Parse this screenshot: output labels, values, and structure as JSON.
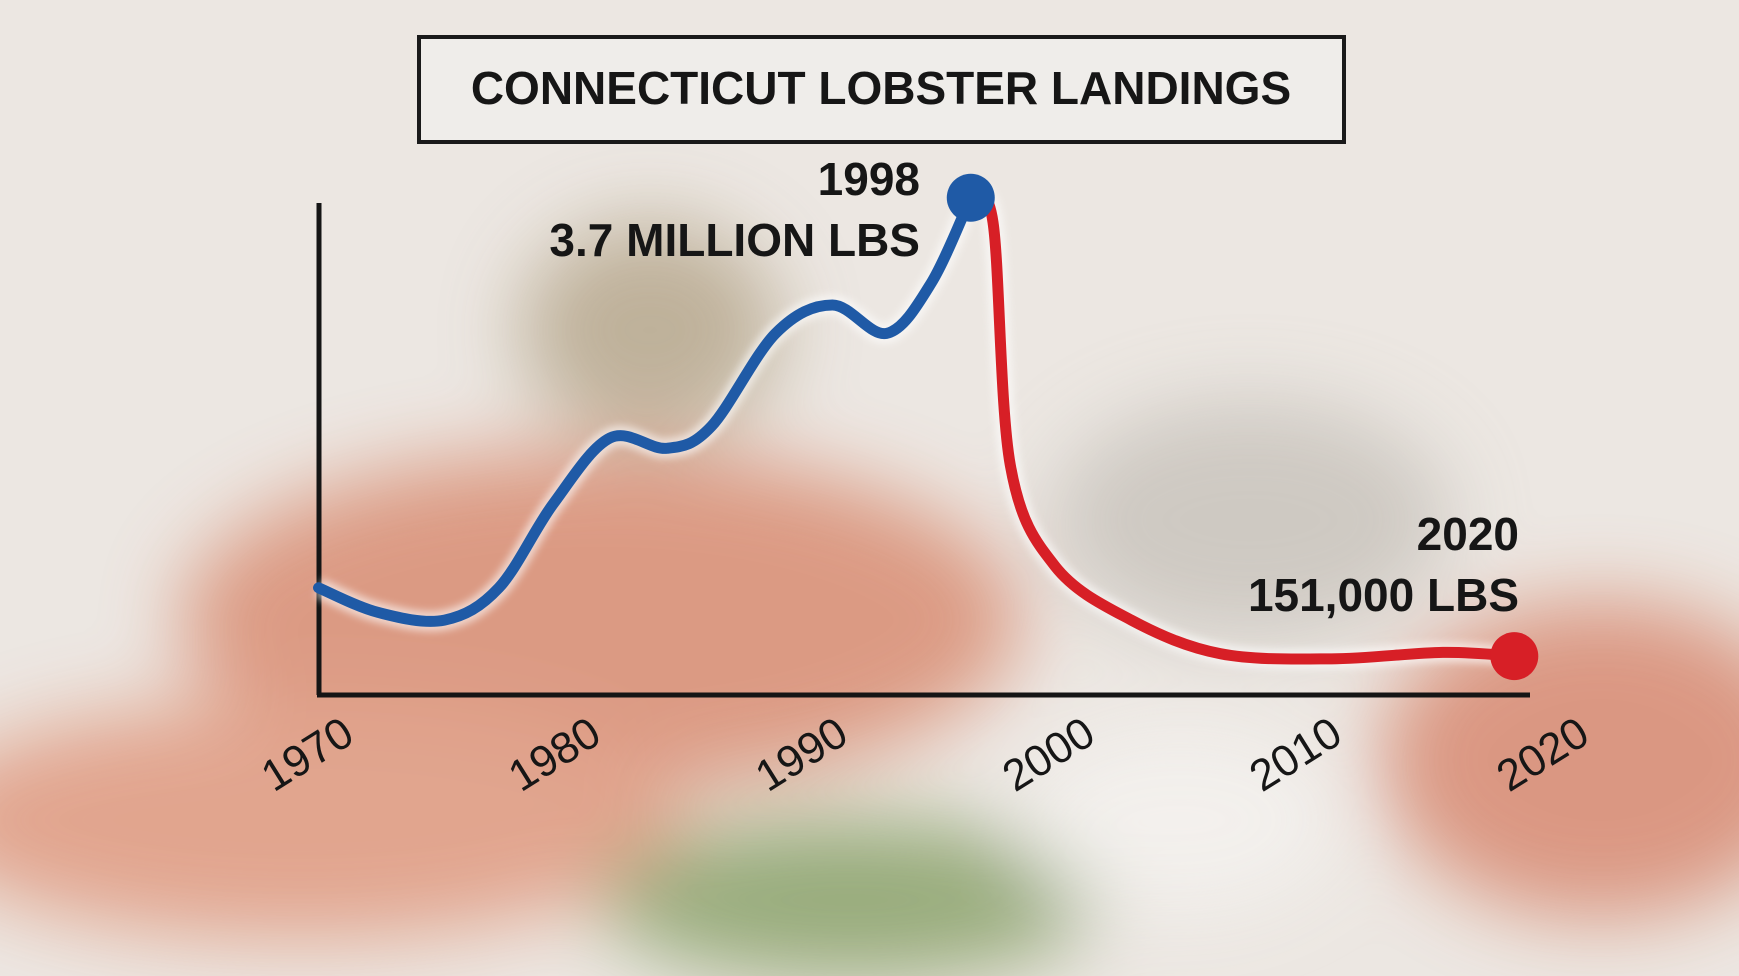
{
  "chart_data": {
    "type": "line",
    "title": "CONNECTICUT LOBSTER LANDINGS",
    "annotations": [
      "1998",
      "3.7 MILLION LBS",
      "2020",
      "151,000 LBS"
    ],
    "series": [
      {
        "color": "#1f5aa6",
        "x": [
          1971.6,
          1974,
          1976.7,
          1978.9,
          1981.1,
          1983.4,
          1985.7,
          1987.5,
          1990.1,
          1992.4,
          1994.6,
          1996.4,
          1998
        ],
        "values": [
          680000,
          490000,
          430000,
          680000,
          1330000,
          1840000,
          1760000,
          1930000,
          2650000,
          2870000,
          2650000,
          3040000,
          3700000
        ]
      },
      {
        "color": "#d71f26",
        "x": [
          1998,
          1998.9,
          1999.6,
          2001.4,
          2004.5,
          2008.1,
          2012.6,
          2017.1,
          2020
        ],
        "values": [
          3700000,
          3510000,
          1630000,
          850000,
          430000,
          170000,
          130000,
          180000,
          151000
        ]
      }
    ],
    "xlim": [
      1970,
      2021
    ],
    "xticks": [
      1970,
      1980,
      1990,
      2000,
      2010,
      2020
    ],
    "ylim": [
      -150000,
      4000000
    ],
    "grid": false
  }
}
